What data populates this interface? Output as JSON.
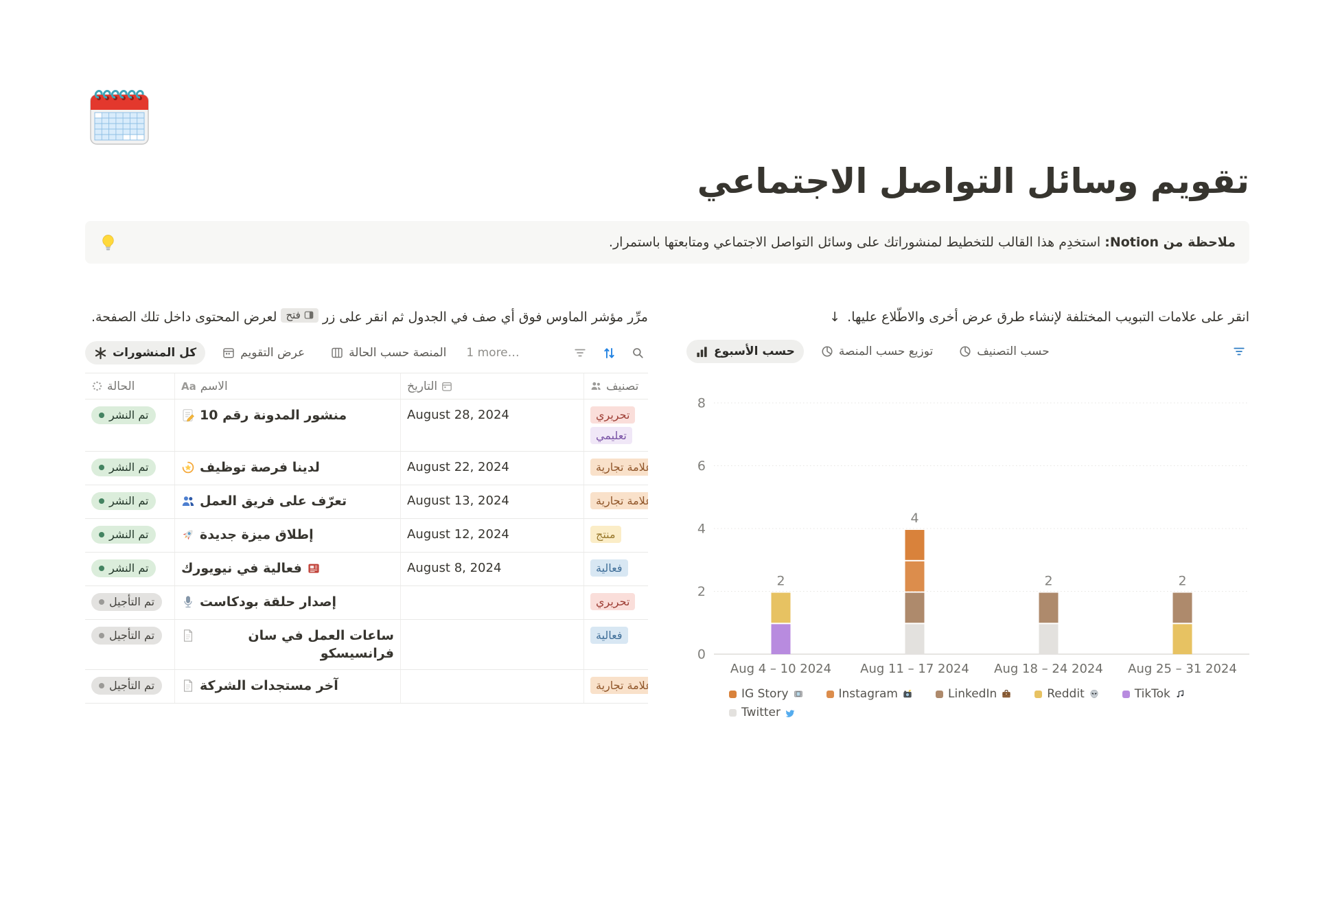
{
  "page": {
    "icon": "spiral-calendar",
    "title": "تقويم وسائل التواصل الاجتماعي",
    "callout": {
      "icon": "light-bulb",
      "bold": "ملاحظة من Notion:",
      "text": "استخدِم هذا القالب للتخطيط لمنشوراتك على وسائل التواصل الاجتماعي ومتابعتها باستمرار."
    }
  },
  "table_section": {
    "hint_before": "مرِّر مؤشر الماوس فوق أي صف في الجدول ثم انقر على زر",
    "open_button": "فتح",
    "hint_after": "لعرض المحتوى داخل تلك الصفحة.",
    "views": [
      {
        "label": "كل المنشورات",
        "icon": "asterisk",
        "selected": true
      },
      {
        "label": "عرض التقويم",
        "icon": "calendar",
        "selected": false
      },
      {
        "label": "المنصة حسب الحالة",
        "icon": "board",
        "selected": false
      }
    ],
    "more_label": "1 more…",
    "toolbar_icons": [
      "filter",
      "sort",
      "search"
    ],
    "columns": [
      {
        "label": "الحالة",
        "icon": "status-prop"
      },
      {
        "label": "الاسم",
        "icon": "aa-prop"
      },
      {
        "label": "التاريخ",
        "icon": "calendar-prop",
        "icon_after": true
      },
      {
        "label": "تصنيف",
        "icon": "people-prop"
      }
    ],
    "rows": [
      {
        "status": "تم النشر",
        "status_color": "green",
        "icon": "memo",
        "name": "منشور المدونة رقم 10",
        "date": "August 28, 2024",
        "tags": [
          {
            "label": "تحريري",
            "color": "red"
          },
          {
            "label": "تعليمي",
            "color": "purple"
          }
        ]
      },
      {
        "status": "تم النشر",
        "status_color": "green",
        "icon": "dizzy",
        "name": "لدينا فرصة توظيف",
        "date": "August 22, 2024",
        "tags": [
          {
            "label": "علامة تجارية",
            "color": "brown"
          }
        ]
      },
      {
        "status": "تم النشر",
        "status_color": "green",
        "icon": "busts",
        "name": "تعرّف على فريق العمل",
        "date": "August 13, 2024",
        "tags": [
          {
            "label": "علامة تجارية",
            "color": "brown"
          }
        ]
      },
      {
        "status": "تم النشر",
        "status_color": "green",
        "icon": "rocket",
        "name": "إطلاق ميزة جديدة",
        "date": "August 12, 2024",
        "tags": [
          {
            "label": "منتج",
            "color": "yellow"
          }
        ]
      },
      {
        "status": "تم النشر",
        "status_color": "green",
        "icon": "news",
        "icon_trailing": true,
        "name": "فعالية في نيويورك",
        "date": "August 8, 2024",
        "tags": [
          {
            "label": "فعالية",
            "color": "blue"
          }
        ]
      },
      {
        "status": "تم التأجيل",
        "status_color": "gray",
        "icon": "mic",
        "name": "إصدار حلقة بودكاست",
        "date": "",
        "tags": [
          {
            "label": "تحريري",
            "color": "red"
          }
        ]
      },
      {
        "status": "تم التأجيل",
        "status_color": "gray",
        "icon": "page",
        "name": "ساعات العمل في سان فرانسيسكو",
        "date": "",
        "tags": [
          {
            "label": "فعالية",
            "color": "blue"
          }
        ]
      },
      {
        "status": "تم التأجيل",
        "status_color": "gray",
        "icon": "page",
        "name": "آخر مستجدات الشركة",
        "date": "",
        "tags": [
          {
            "label": "علامة تجارية",
            "color": "brown"
          }
        ]
      }
    ]
  },
  "chart_section": {
    "hint": "انقر على علامات التبويب المختلفة لإنشاء طرق عرض أخرى والاطّلاع عليها.",
    "hint_arrow": "↓",
    "views": [
      {
        "label": "حسب الأسبوع",
        "icon": "barchart",
        "selected": true
      },
      {
        "label": "توزيع حسب المنصة",
        "icon": "pie",
        "selected": false
      },
      {
        "label": "حسب التصنيف",
        "icon": "pie",
        "selected": false
      }
    ],
    "filter_icon_color": "#2C7CC4",
    "chart_data": {
      "type": "bar",
      "stacked": true,
      "categories": [
        "Aug 4 – 10 2024",
        "Aug 11 – 17 2024",
        "Aug 18 – 24 2024",
        "Aug 25 – 31 2024"
      ],
      "series": [
        {
          "name": "IG Story",
          "icon": "film",
          "color": "#D9823B",
          "values": [
            0,
            1,
            0,
            0
          ]
        },
        {
          "name": "Instagram",
          "icon": "camera",
          "color": "#DC8D4C",
          "values": [
            0,
            1,
            0,
            0
          ]
        },
        {
          "name": "LinkedIn",
          "icon": "briefcase",
          "color": "#AE8A6C",
          "values": [
            0,
            1,
            1,
            1
          ]
        },
        {
          "name": "Reddit",
          "icon": "alien",
          "color": "#E7C262",
          "values": [
            1,
            0,
            0,
            1
          ]
        },
        {
          "name": "TikTok",
          "icon": "music",
          "color": "#B88BDF",
          "values": [
            1,
            0,
            0,
            0
          ]
        },
        {
          "name": "Twitter",
          "icon": "bird",
          "color": "#E3E1DE",
          "values": [
            0,
            1,
            1,
            0
          ]
        }
      ],
      "totals": [
        2,
        4,
        2,
        2
      ],
      "title": "",
      "xlabel": "",
      "ylabel": "",
      "ylim": [
        0,
        8
      ],
      "yticks": [
        0,
        2,
        4,
        6,
        8
      ],
      "grid": "dotted-horizontal",
      "legend_position": "bottom",
      "stack_order": "reverse-legend"
    }
  },
  "colors": {
    "accent_blue": "#2383E2",
    "grid_line": "#E6E5E2",
    "axis_baseline": "#D7D5D1",
    "axis_text": "#82817D",
    "xaxis_text": "#6E6D68",
    "legend_text": "#55534E"
  }
}
